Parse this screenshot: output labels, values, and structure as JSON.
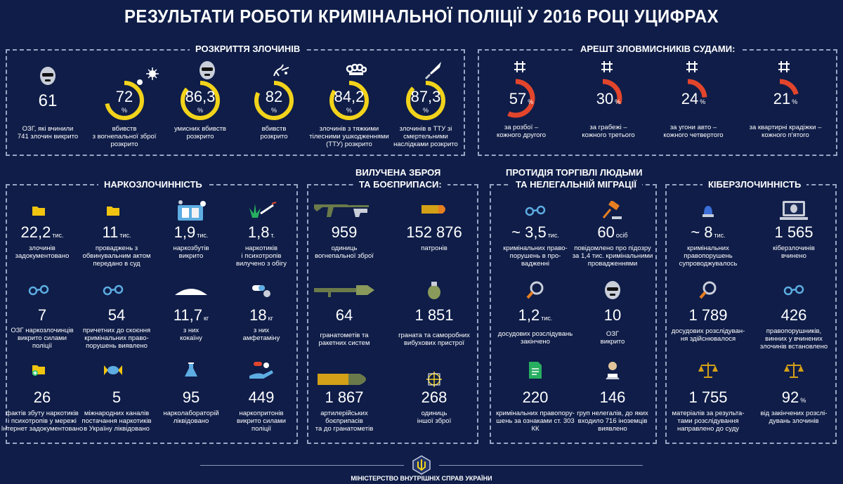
{
  "title": "РЕЗУЛЬТАТИ РОБОТИ КРИМІНАЛЬНОЇ ПОЛІЦІЇ У 2016 РОЦІ УЦИФРАХ",
  "sections": {
    "crimes": "РОЗКРИТТЯ ЗЛОЧИНІВ",
    "arrest": "АРЕШТ ЗЛОВМИСНИКІВ СУДАМИ:",
    "drugs": "НАРКОЗЛОЧИННІСТЬ",
    "weapons_l1": "ВИЛУЧЕНА ЗБРОЯ",
    "weapons_l2": "ТА БОЄПРИПАСИ:",
    "traffic_l1": "ПРОТИДІЯ ТОРГІВЛІ ЛЮДЬМИ",
    "traffic_l2": "ТА НЕЛЕГАЛЬНІЙ МІГРАЦІЇ",
    "cyber": "КІБЕРЗЛОЧИННІСТЬ"
  },
  "crimes": [
    {
      "value": "61",
      "caption": "ОЗГ, які вчинили\n741 злочин викрито",
      "icon": "mask-icon"
    },
    {
      "value": "72",
      "unit": "%",
      "caption": "вбивств\nз вогнепальної зброї\nрозкрито",
      "icon": "gunshot-icon",
      "pct": 72
    },
    {
      "value": "86,3",
      "unit": "%",
      "caption": "умисних вбивств\nрозкрито",
      "icon": "mask-icon",
      "pct": 86.3
    },
    {
      "value": "82",
      "unit": "%",
      "caption": "вбивств\nрозкрито",
      "icon": "blood-icon",
      "pct": 82
    },
    {
      "value": "84,2",
      "unit": "%",
      "caption": "злочинів з тяжкими\nтілесними  ушкодженнями\n(ТТУ) розкрито",
      "icon": "knuckles-icon",
      "pct": 84.2
    },
    {
      "value": "87,3",
      "unit": "%",
      "caption": "злочинів в ТТУ зі\nсмертельними\nнаслідками розкрито",
      "icon": "knife-icon",
      "pct": 87.3
    }
  ],
  "arrests": [
    {
      "value": "57",
      "unit": "%",
      "caption": "за розбої –\nкожного другого",
      "pct": 57
    },
    {
      "value": "30",
      "unit": "%",
      "caption": "за грабежі –\nкожного третього",
      "pct": 30
    },
    {
      "value": "24",
      "unit": "%",
      "caption": "за угони авто –\nкожного четвертого",
      "pct": 24
    },
    {
      "value": "21",
      "unit": "%",
      "caption": "за квартирні крадіжки –\nкожного п'ятого",
      "pct": 21
    }
  ],
  "drugs": [
    {
      "value": "22,2",
      "unit": "тис.",
      "caption": "злочинів\nзадокументовано",
      "icon": "folder-icon"
    },
    {
      "value": "11",
      "unit": "тис.",
      "caption": "проваджень з\nобвинувальним актом\nпередано в суд",
      "icon": "folder-icon"
    },
    {
      "value": "1,9",
      "unit": "тис.",
      "caption": "наркозбутів\nвикрито",
      "icon": "drug-kit-icon"
    },
    {
      "value": "1,8",
      "unit": "т.",
      "caption": "наркотиків\nі психотропів\nвилучено з обігу",
      "icon": "cannabis-syringe-icon"
    },
    {
      "value": "7",
      "unit": "",
      "caption": "ОЗГ наркозлочинців\nвикрито силами\nполіції",
      "icon": "handcuffs-icon"
    },
    {
      "value": "54",
      "unit": "",
      "caption": "причетних до скоєння\nкримінальних право-\nпорушень виявлено",
      "icon": "handcuffs-icon"
    },
    {
      "value": "11,7",
      "unit": "кг",
      "caption": "з них\nкокаїну",
      "icon": "powder-icon"
    },
    {
      "value": "18",
      "unit": "кг",
      "caption": "з них\nамфетаміну",
      "icon": "pills-icon"
    },
    {
      "value": "26",
      "unit": "",
      "caption": "фактів збуту наркотиків\nі психотропів у мережі\nІнтернет задокументовано",
      "icon": "folder-plus-icon"
    },
    {
      "value": "5",
      "unit": "",
      "caption": "міжнародних каналів\nпостачання наркотиків\nв Україну ліквідовано",
      "icon": "candy-icon"
    },
    {
      "value": "95",
      "unit": "",
      "caption": "нарколабораторій\nліквідовано",
      "icon": "flask-icon"
    },
    {
      "value": "449",
      "unit": "",
      "caption": "наркопритонів\nвикрито силами\nполіції",
      "icon": "hand-pills-icon"
    }
  ],
  "weapons": [
    {
      "value": "959",
      "caption": "одиниць\nвогнепальної зброї",
      "icon": "rifle-icon"
    },
    {
      "value": "152 876",
      "caption": "патронів",
      "icon": "bullet-icon"
    },
    {
      "value": "64",
      "caption": "гранатометів та\nракетних систем",
      "icon": "rpg-icon"
    },
    {
      "value": "1 851",
      "caption": "граната та саморобних\nвибухових пристрої",
      "icon": "grenade-icon"
    },
    {
      "value": "1 867",
      "caption": "артилерійських\nбоєприпасів\nта до гранатометів",
      "icon": "shell-icon"
    },
    {
      "value": "268",
      "caption": "одиниць\nіншої зброї",
      "icon": "target-icon"
    }
  ],
  "traffic": [
    {
      "value": "~ 3,5",
      "unit": "тис.",
      "caption": "кримінальних право-\nпорушень в про-\nвадженні",
      "icon": "handcuffs-icon"
    },
    {
      "value": "60",
      "unit": "осіб",
      "caption": "повідомлено про підозру\nза 1,4 тис. кримінальними\nпровадженнями",
      "icon": "gavel-icon"
    },
    {
      "value": "1,2",
      "unit": "тис.",
      "caption": "досудових розслідувань\nзакінчено",
      "icon": "magnifier-icon"
    },
    {
      "value": "10",
      "unit": "",
      "caption": "ОЗГ\nвикрито",
      "icon": "mask-icon"
    },
    {
      "value": "220",
      "unit": "",
      "caption": "кримінальних правопору-\nшень за ознаками ст. 303\nКК",
      "icon": "document-icon"
    },
    {
      "value": "146",
      "unit": "",
      "caption": "груп нелегалів, до яких\nвходило 716 іноземців\nвиявлено",
      "icon": "prisoner-icon"
    }
  ],
  "cyber": [
    {
      "value": "~ 8",
      "unit": "тис.",
      "caption": "кримінальних\nправопорушень\nсупроводжувалось",
      "icon": "siren-icon"
    },
    {
      "value": "1 565",
      "unit": "",
      "caption": "кіберзлочинів\nвчинено",
      "icon": "laptop-mask-icon"
    },
    {
      "value": "1 789",
      "unit": "",
      "caption": "досудових розслідуван-\nня здійснювалося",
      "icon": "magnifier-icon"
    },
    {
      "value": "426",
      "unit": "",
      "caption": "правопорушників,\nвинних у вчинених\nзлочинів встановлено",
      "icon": "handcuffs-icon"
    },
    {
      "value": "1 755",
      "unit": "",
      "caption": "матеріалів за результа-\nтами розслідування\nнаправлено до суду",
      "icon": "scales-icon"
    },
    {
      "value": "92",
      "unit": "%",
      "caption": "від закінчених розслі-\nдувань злочинів",
      "icon": "scales-icon"
    }
  ],
  "footer": "МІНІСТЕРСТВО ВНУТРІШНІХ СПРАВ УКРАЇНИ",
  "colors": {
    "background": "#0f1d48",
    "yellow": "#f2d31b",
    "red": "#e2452c",
    "folder": "#f1c40f"
  }
}
